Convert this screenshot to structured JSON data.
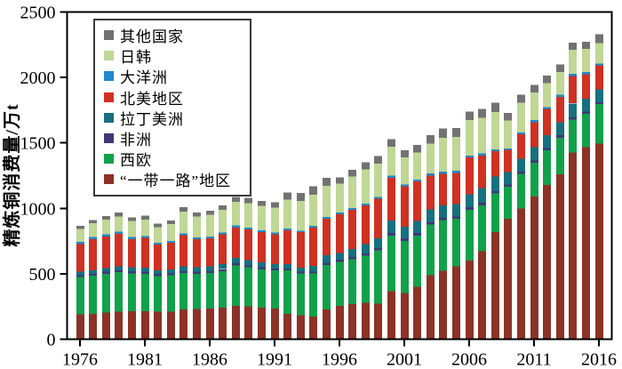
{
  "chart_data": {
    "type": "bar",
    "stacked": true,
    "title": "",
    "xlabel": "",
    "ylabel": "精炼铜消费量/万t",
    "ylim": [
      0,
      2500
    ],
    "yticks": [
      0,
      500,
      1000,
      1500,
      2000,
      2500
    ],
    "xticks": [
      1976,
      1981,
      1986,
      1991,
      1996,
      2001,
      2006,
      2011,
      2016
    ],
    "grid": false,
    "legend_position": "top-left",
    "legend_order_top_to_bottom": [
      "其他国家",
      "日韩",
      "大洋洲",
      "北美地区",
      "拉丁美洲",
      "非洲",
      "西欧",
      "“一带一路”地区"
    ],
    "years": [
      1976,
      1977,
      1978,
      1979,
      1980,
      1981,
      1982,
      1983,
      1984,
      1985,
      1986,
      1987,
      1988,
      1989,
      1990,
      1991,
      1992,
      1993,
      1994,
      1995,
      1996,
      1997,
      1998,
      1999,
      2000,
      2001,
      2002,
      2003,
      2004,
      2005,
      2006,
      2007,
      2008,
      2009,
      2010,
      2011,
      2012,
      2013,
      2014,
      2015,
      2016
    ],
    "series": [
      {
        "name": "“一带一路”地区",
        "color": "#8c3226",
        "values": [
          190,
          195,
          205,
          212,
          214,
          215,
          210,
          210,
          228,
          230,
          234,
          240,
          255,
          250,
          240,
          235,
          195,
          182,
          172,
          228,
          255,
          268,
          278,
          273,
          368,
          352,
          400,
          490,
          524,
          556,
          600,
          672,
          818,
          920,
          1000,
          1090,
          1180,
          1260,
          1428,
          1468,
          1496
        ]
      },
      {
        "name": "西欧",
        "color": "#12a14b",
        "values": [
          285,
          290,
          295,
          300,
          290,
          285,
          272,
          278,
          277,
          270,
          272,
          280,
          310,
          300,
          295,
          290,
          330,
          322,
          330,
          340,
          337,
          345,
          362,
          408,
          425,
          400,
          393,
          385,
          386,
          364,
          390,
          352,
          296,
          245,
          264,
          260,
          264,
          280,
          250,
          254,
          300
        ]
      },
      {
        "name": "非洲",
        "color": "#3f3877",
        "values": [
          15,
          15,
          15,
          16,
          16,
          16,
          16,
          16,
          15,
          15,
          15,
          15,
          15,
          15,
          15,
          15,
          14,
          14,
          14,
          15,
          16,
          16,
          16,
          16,
          18,
          18,
          18,
          18,
          18,
          18,
          18,
          18,
          18,
          16,
          16,
          17,
          18,
          18,
          18,
          18,
          16
        ]
      },
      {
        "name": "拉丁美洲",
        "color": "#16707f",
        "values": [
          28,
          28,
          28,
          30,
          30,
          30,
          28,
          28,
          36,
          35,
          35,
          38,
          40,
          40,
          38,
          35,
          34,
          28,
          43,
          58,
          52,
          62,
          70,
          75,
          95,
          90,
          92,
          100,
          96,
          96,
          100,
          112,
          112,
          95,
          100,
          100,
          96,
          100,
          106,
          96,
          96
        ]
      },
      {
        "name": "北美地区",
        "color": "#cf3123",
        "values": [
          210,
          238,
          243,
          248,
          215,
          228,
          198,
          205,
          240,
          215,
          216,
          228,
          234,
          234,
          230,
          225,
          260,
          272,
          295,
          280,
          295,
          296,
          296,
          300,
          328,
          308,
          302,
          258,
          240,
          238,
          280,
          250,
          194,
          170,
          186,
          192,
          200,
          194,
          210,
          190,
          184
        ]
      },
      {
        "name": "大洋洲",
        "color": "#2189cb",
        "values": [
          15,
          15,
          15,
          15,
          15,
          15,
          14,
          14,
          14,
          14,
          14,
          14,
          15,
          15,
          14,
          14,
          12,
          12,
          12,
          12,
          14,
          14,
          14,
          14,
          16,
          15,
          15,
          15,
          15,
          15,
          15,
          15,
          14,
          12,
          13,
          14,
          15,
          15,
          16,
          15,
          15
        ]
      },
      {
        "name": "日韩",
        "color": "#c0d795",
        "values": [
          100,
          105,
          112,
          118,
          122,
          124,
          118,
          128,
          166,
          160,
          164,
          174,
          180,
          185,
          186,
          190,
          220,
          226,
          238,
          238,
          220,
          242,
          260,
          256,
          222,
          208,
          208,
          228,
          260,
          260,
          270,
          272,
          284,
          214,
          228,
          212,
          184,
          176,
          182,
          176,
          154
        ]
      },
      {
        "name": "其他国家",
        "color": "#727272",
        "values": [
          22,
          25,
          28,
          30,
          28,
          30,
          27,
          28,
          32,
          30,
          32,
          35,
          38,
          40,
          40,
          42,
          57,
          62,
          66,
          62,
          46,
          52,
          56,
          58,
          56,
          54,
          56,
          64,
          72,
          68,
          66,
          68,
          72,
          58,
          60,
          58,
          56,
          57,
          57,
          57,
          70
        ]
      }
    ]
  }
}
